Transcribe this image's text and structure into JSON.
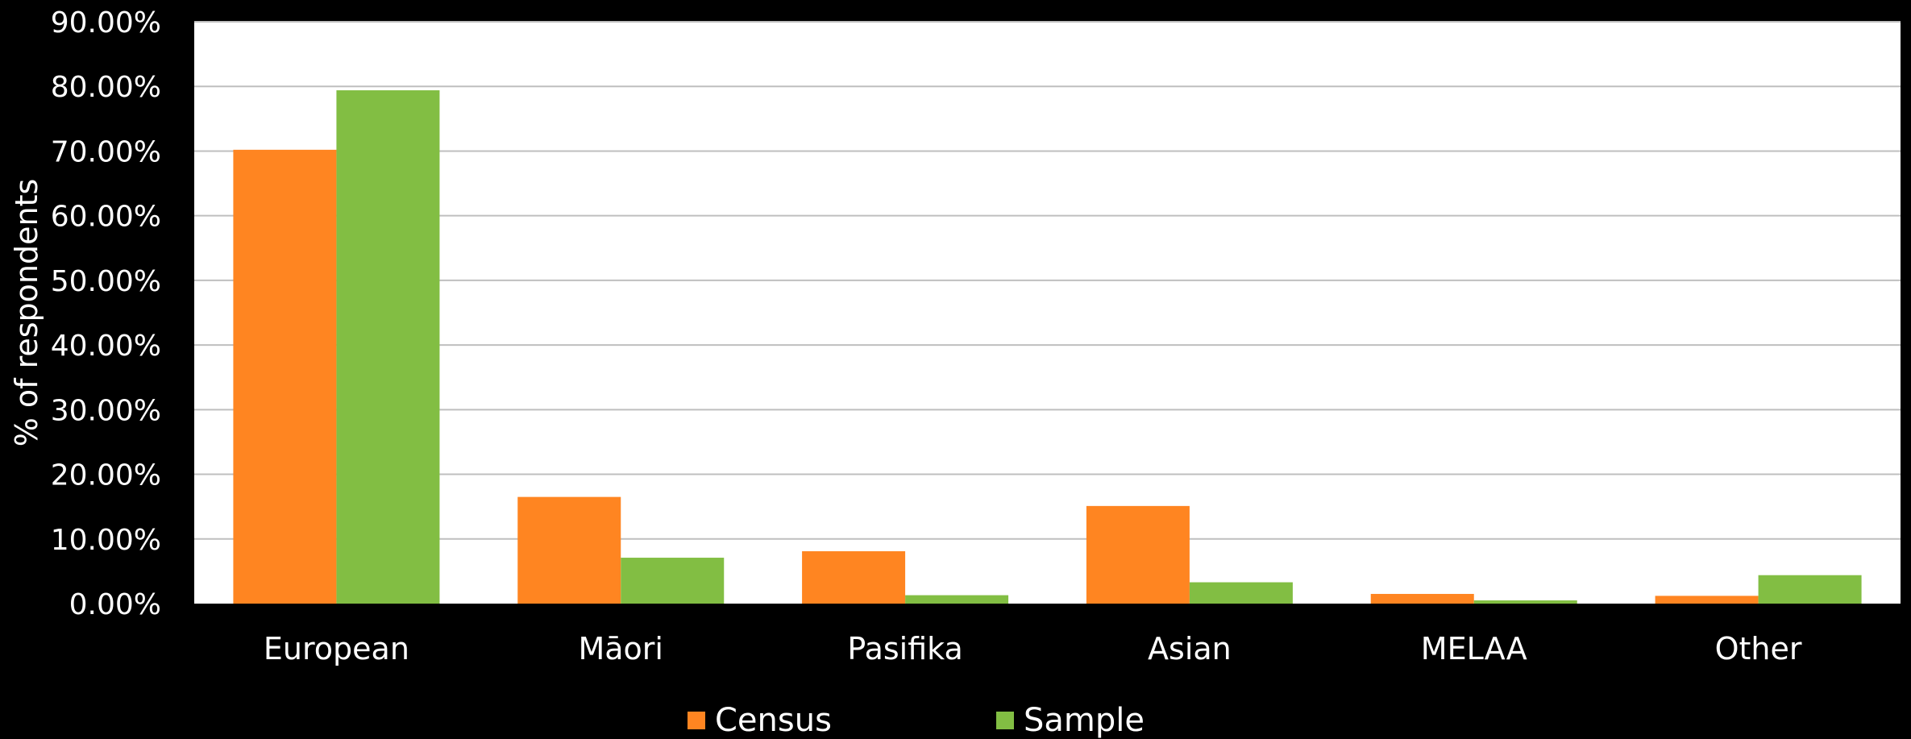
{
  "chart_data": {
    "type": "bar",
    "categories": [
      "European",
      "Māori",
      "Pasifika",
      "Asian",
      "MELAA",
      "Other"
    ],
    "series": [
      {
        "name": "Census",
        "values": [
          70.2,
          16.5,
          8.1,
          15.1,
          1.5,
          1.2
        ],
        "color": "#FF8521"
      },
      {
        "name": "Sample",
        "values": [
          79.4,
          7.1,
          1.3,
          3.3,
          0.5,
          4.4
        ],
        "color": "#82BE43"
      }
    ],
    "yticks": [
      "0.00%",
      "10.00%",
      "20.00%",
      "30.00%",
      "40.00%",
      "50.00%",
      "60.00%",
      "70.00%",
      "80.00%",
      "90.00%"
    ],
    "ylim": [
      0,
      90
    ],
    "ylabel": "% of respondents",
    "xlabel": "",
    "title": "",
    "grid": true,
    "legend_position": "bottom",
    "plot_background": "#ffffff",
    "page_background": "#000000",
    "gridline_color": "#bfbfbf"
  }
}
